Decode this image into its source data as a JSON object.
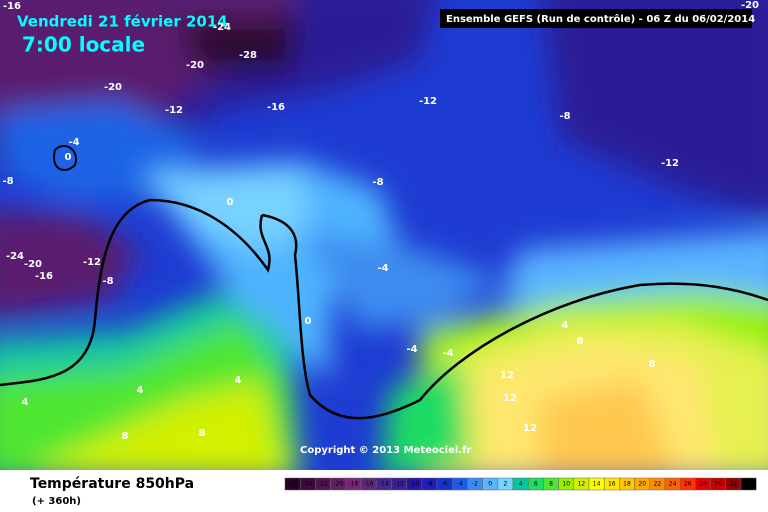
{
  "header": {
    "date": "Vendredi 21 février 2014",
    "time": "7:00 locale",
    "model": "Ensemble GEFS (Run de contrôle)  -  06 Z du 06/02/2014"
  },
  "map": {
    "copyright": "Copyright © 2013 Meteociel.fr",
    "contour_labels": [
      "-16",
      "-24",
      "-28",
      "-20",
      "-20",
      "-12",
      "-16",
      "-12",
      "-8",
      "-12",
      "-20",
      "-4",
      "0",
      "-8",
      "0",
      "-8",
      "-24",
      "-20",
      "-16",
      "-12",
      "-8",
      "-4",
      "0",
      "-4",
      "-4",
      "4",
      "8",
      "8",
      "12",
      "12",
      "12",
      "4",
      "4",
      "4",
      "8",
      "8"
    ]
  },
  "footer": {
    "variable": "Température 850hPa",
    "lead": "(+ 360h)"
  },
  "legend": {
    "labels": [
      "-26",
      "-24",
      "-22",
      "-20",
      "-18",
      "-16",
      "-14",
      "-12",
      "-10",
      "-8",
      "-6",
      "-4",
      "-2",
      "0",
      "2",
      "4",
      "6",
      "8",
      "10",
      "12",
      "14",
      "16",
      "18",
      "20",
      "22",
      "24",
      "26",
      "28",
      "30",
      "32",
      "34"
    ],
    "colors": [
      "#280028",
      "#3c0a3c",
      "#501450",
      "#641e64",
      "#782878",
      "#5a2a78",
      "#46288c",
      "#3c1e96",
      "#2814a0",
      "#1e1eb4",
      "#1432d2",
      "#1e5ae6",
      "#3c8cf0",
      "#5ab4ff",
      "#78d2ff",
      "#00c8a0",
      "#1edc64",
      "#50e632",
      "#96f000",
      "#d2f000",
      "#ffff00",
      "#ffe600",
      "#ffc800",
      "#ffaa00",
      "#ff8c00",
      "#ff6400",
      "#ff3200",
      "#e60000",
      "#c80000",
      "#960000",
      "#000000"
    ]
  }
}
